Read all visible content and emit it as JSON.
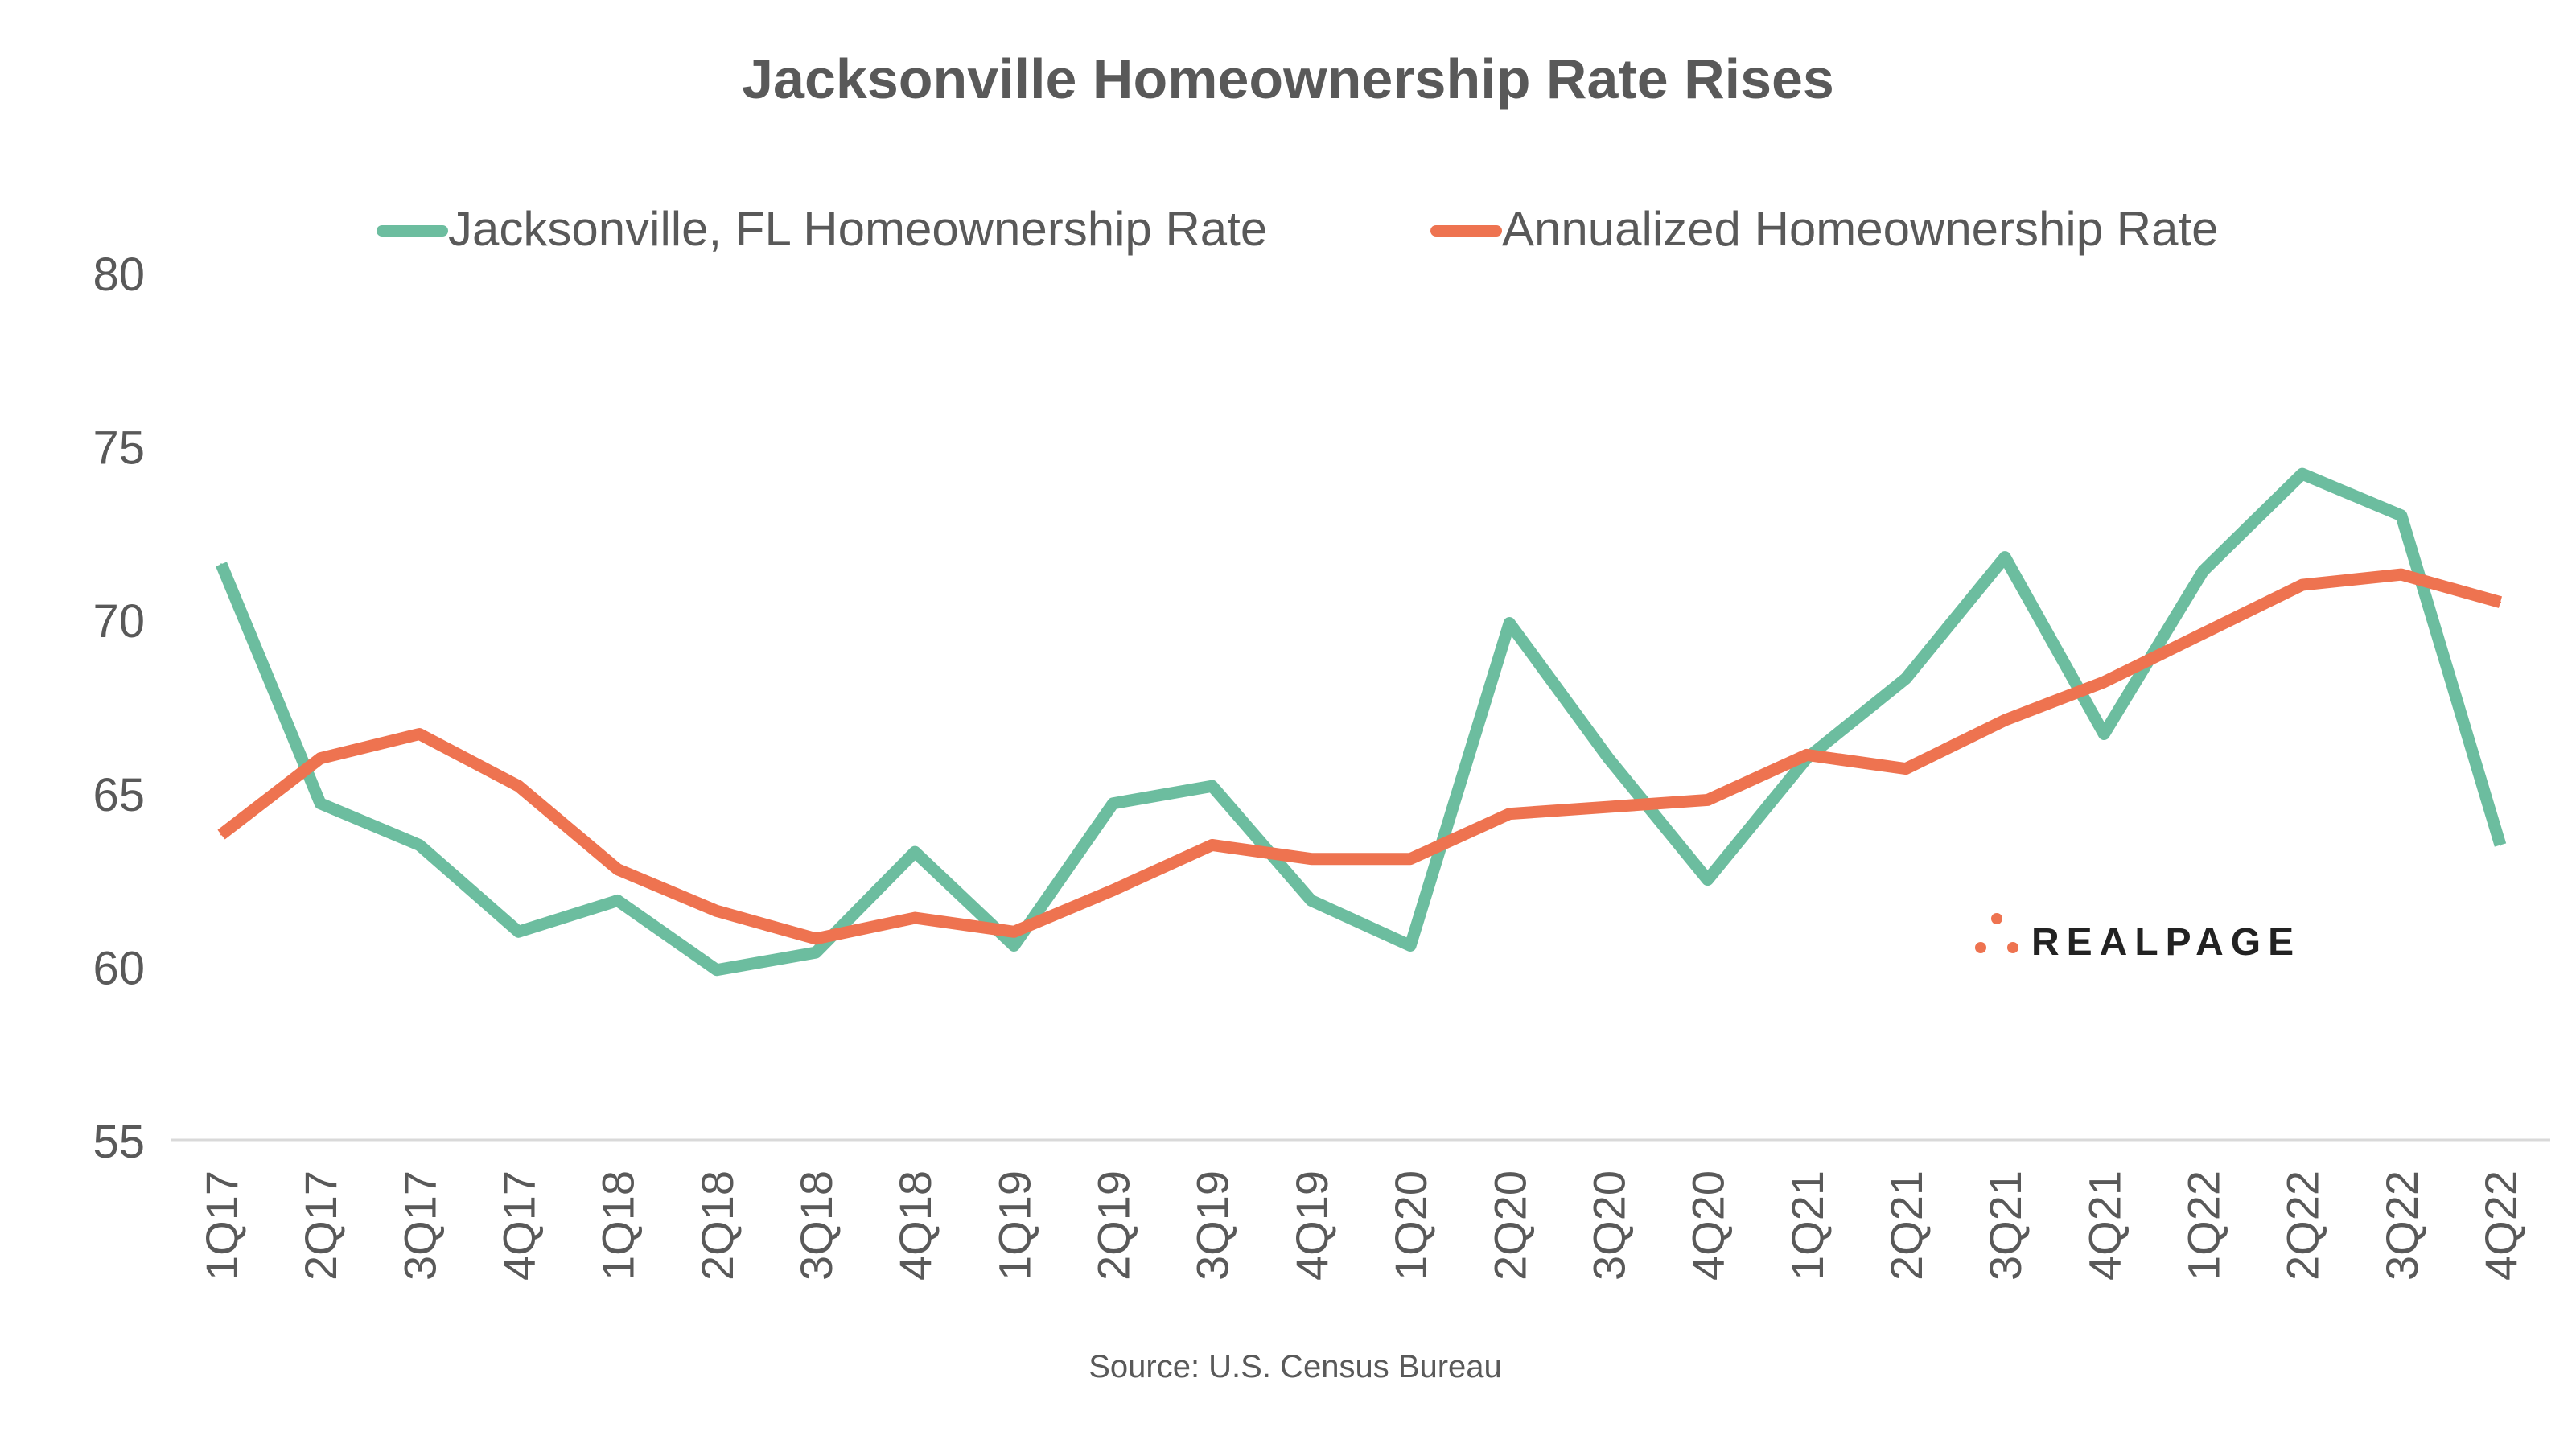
{
  "chart_data": {
    "type": "line",
    "title": "Jacksonville Homeownership Rate Rises",
    "source": "Source: U.S. Census Bureau",
    "logo": "REALPAGE",
    "legend_position": "top",
    "grid": false,
    "ylim": [
      55,
      80
    ],
    "yticks": [
      "55",
      "60",
      "65",
      "70",
      "75",
      "80"
    ],
    "categories": [
      "1Q17",
      "2Q17",
      "3Q17",
      "4Q17",
      "1Q18",
      "2Q18",
      "3Q18",
      "4Q18",
      "1Q19",
      "2Q19",
      "3Q19",
      "4Q19",
      "1Q20",
      "2Q20",
      "3Q20",
      "4Q20",
      "1Q21",
      "2Q21",
      "3Q21",
      "4Q21",
      "1Q22",
      "2Q22",
      "3Q22",
      "4Q22"
    ],
    "series": [
      {
        "name": "Jacksonville, FL Homeownership Rate",
        "color": "#6cbd9f",
        "values": [
          71.6,
          64.7,
          63.5,
          61.0,
          61.9,
          59.9,
          60.4,
          63.3,
          60.6,
          64.7,
          65.2,
          61.9,
          60.6,
          69.9,
          66.0,
          62.5,
          66.0,
          68.3,
          71.8,
          66.7,
          71.4,
          74.2,
          73.0,
          63.5
        ]
      },
      {
        "name": "Annualized Homeownership Rate",
        "color": "#ee7350",
        "values": [
          63.8,
          66.0,
          66.7,
          65.2,
          62.8,
          61.6,
          60.8,
          61.4,
          61.0,
          62.2,
          63.5,
          63.1,
          63.1,
          64.4,
          64.6,
          64.8,
          66.1,
          65.7,
          67.1,
          68.2,
          69.6,
          71.0,
          71.3,
          70.5
        ]
      }
    ]
  }
}
